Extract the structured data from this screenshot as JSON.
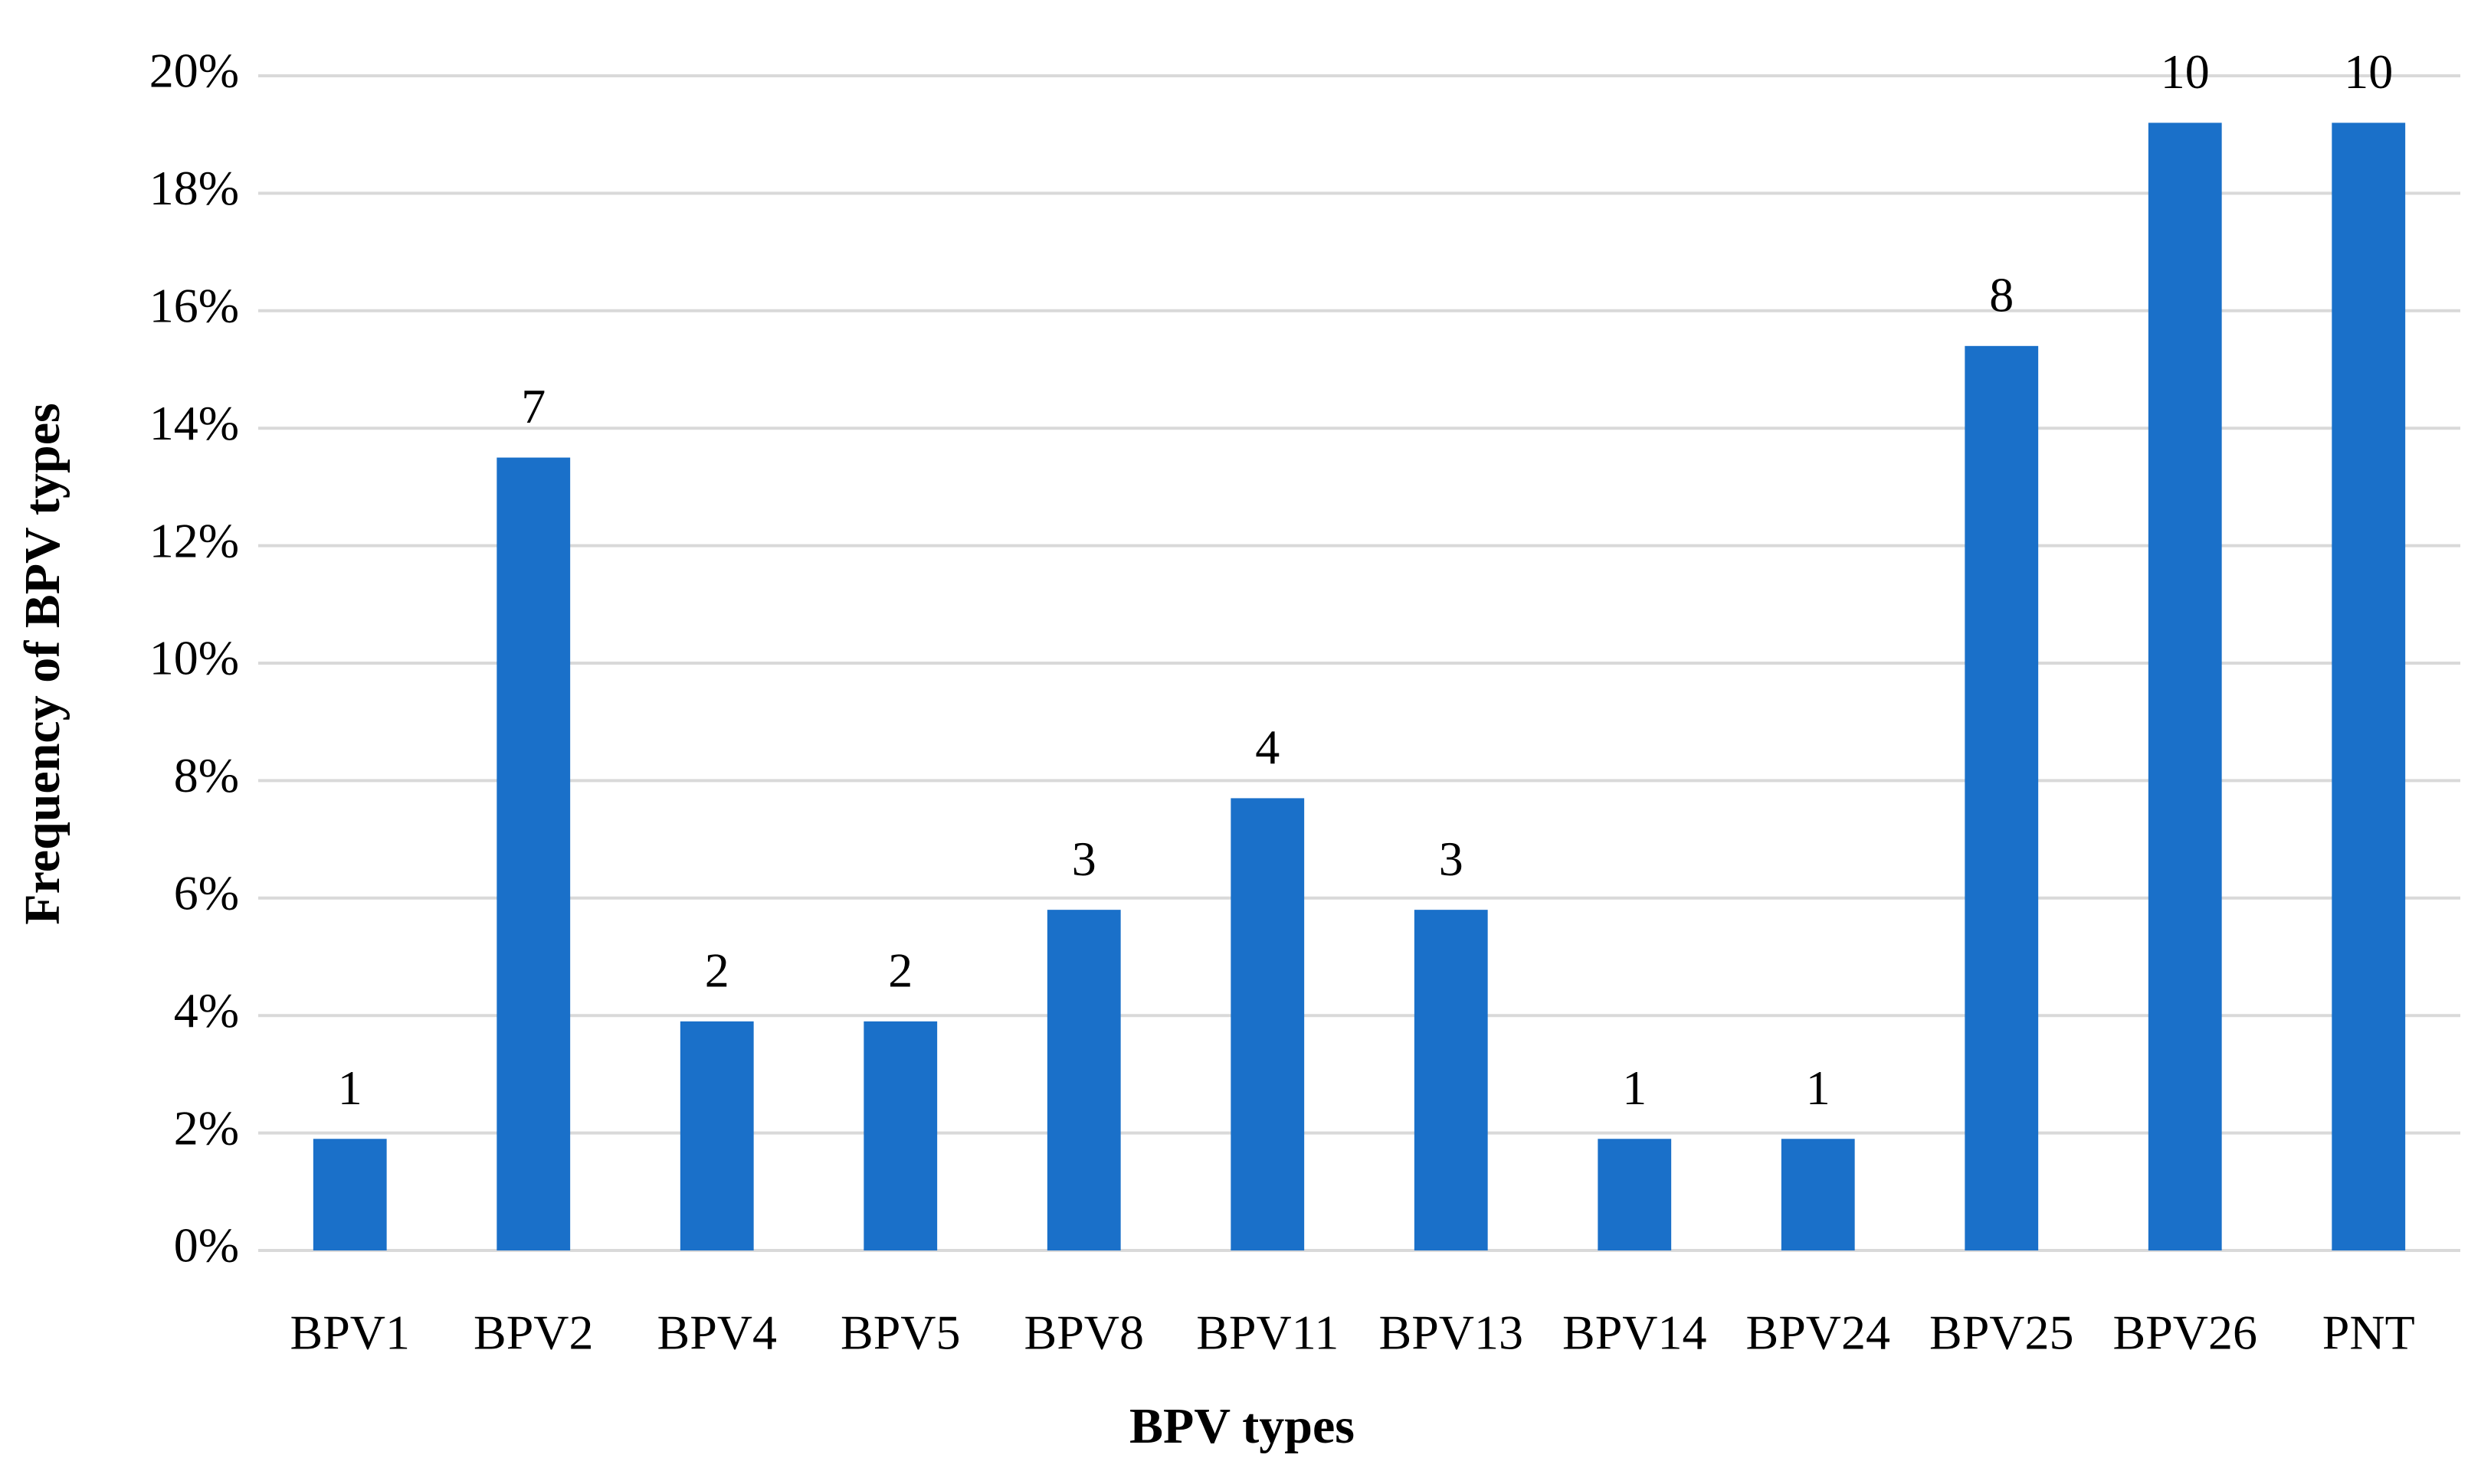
{
  "chart_data": {
    "type": "bar",
    "x_label": "BPV types",
    "y_label": "Frequency of BPV types",
    "categories": [
      "BPV1",
      "BPV2",
      "BPV4",
      "BPV5",
      "BPV8",
      "BPV11",
      "BPV13",
      "BPV14",
      "BPV24",
      "BPV25",
      "BPV26",
      "PNT"
    ],
    "values": [
      1.9,
      13.5,
      3.9,
      3.9,
      5.8,
      7.7,
      5.8,
      1.9,
      1.9,
      15.4,
      19.2,
      19.2
    ],
    "counts": [
      1,
      7,
      2,
      2,
      3,
      4,
      3,
      1,
      1,
      8,
      10,
      10
    ],
    "color": "#1a70c9",
    "ylim": [
      0,
      20
    ],
    "yticks": [
      {
        "value": 0,
        "label": "0%"
      },
      {
        "value": 2,
        "label": "2%"
      },
      {
        "value": 4,
        "label": "4%"
      },
      {
        "value": 6,
        "label": "6%"
      },
      {
        "value": 8,
        "label": "8%"
      },
      {
        "value": 10,
        "label": "10%"
      },
      {
        "value": 12,
        "label": "12%"
      },
      {
        "value": 14,
        "label": "14%"
      },
      {
        "value": 16,
        "label": "16%"
      },
      {
        "value": 18,
        "label": "18%"
      },
      {
        "value": 20,
        "label": "20%"
      }
    ],
    "grid": true
  }
}
